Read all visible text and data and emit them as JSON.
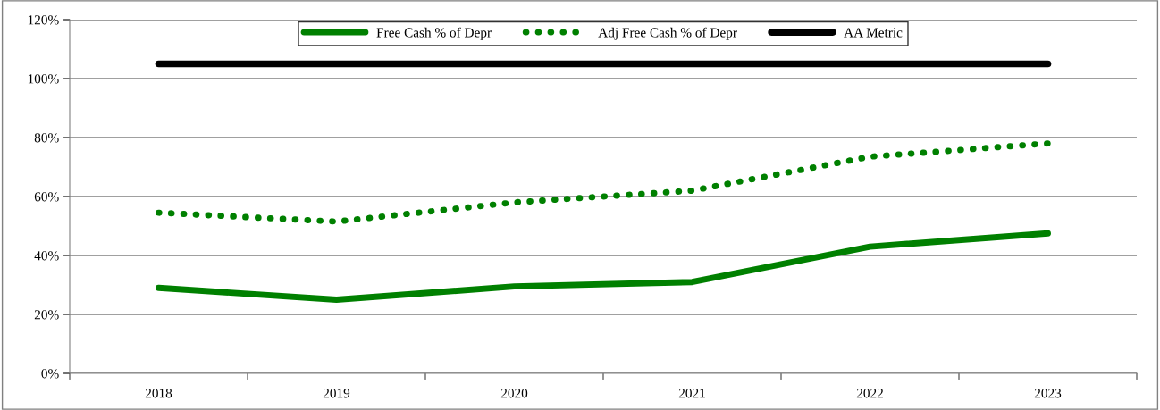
{
  "chart_data": {
    "type": "line",
    "categories": [
      "2018",
      "2019",
      "2020",
      "2021",
      "2022",
      "2023"
    ],
    "series": [
      {
        "name": "Free Cash % of Depr",
        "color": "#008000",
        "line_style": "solid",
        "values": [
          29,
          25,
          29.5,
          31,
          43,
          47.5
        ]
      },
      {
        "name": "Adj Free Cash % of Depr",
        "color": "#008000",
        "line_style": "dotted",
        "values": [
          54.5,
          51.5,
          58,
          62,
          73.5,
          78
        ]
      },
      {
        "name": "AA Metric",
        "color": "#000000",
        "line_style": "solid",
        "values": [
          105,
          105,
          105,
          105,
          105,
          105
        ]
      }
    ],
    "ylim": [
      0,
      120
    ],
    "yticks": [
      {
        "value": 0,
        "label": "0%"
      },
      {
        "value": 20,
        "label": "20%"
      },
      {
        "value": 40,
        "label": "40%"
      },
      {
        "value": 60,
        "label": "60%"
      },
      {
        "value": 80,
        "label": "80%"
      },
      {
        "value": 100,
        "label": "100%"
      },
      {
        "value": 120,
        "label": "120%"
      }
    ],
    "grid": "y",
    "legend": "top",
    "marker": "none"
  }
}
